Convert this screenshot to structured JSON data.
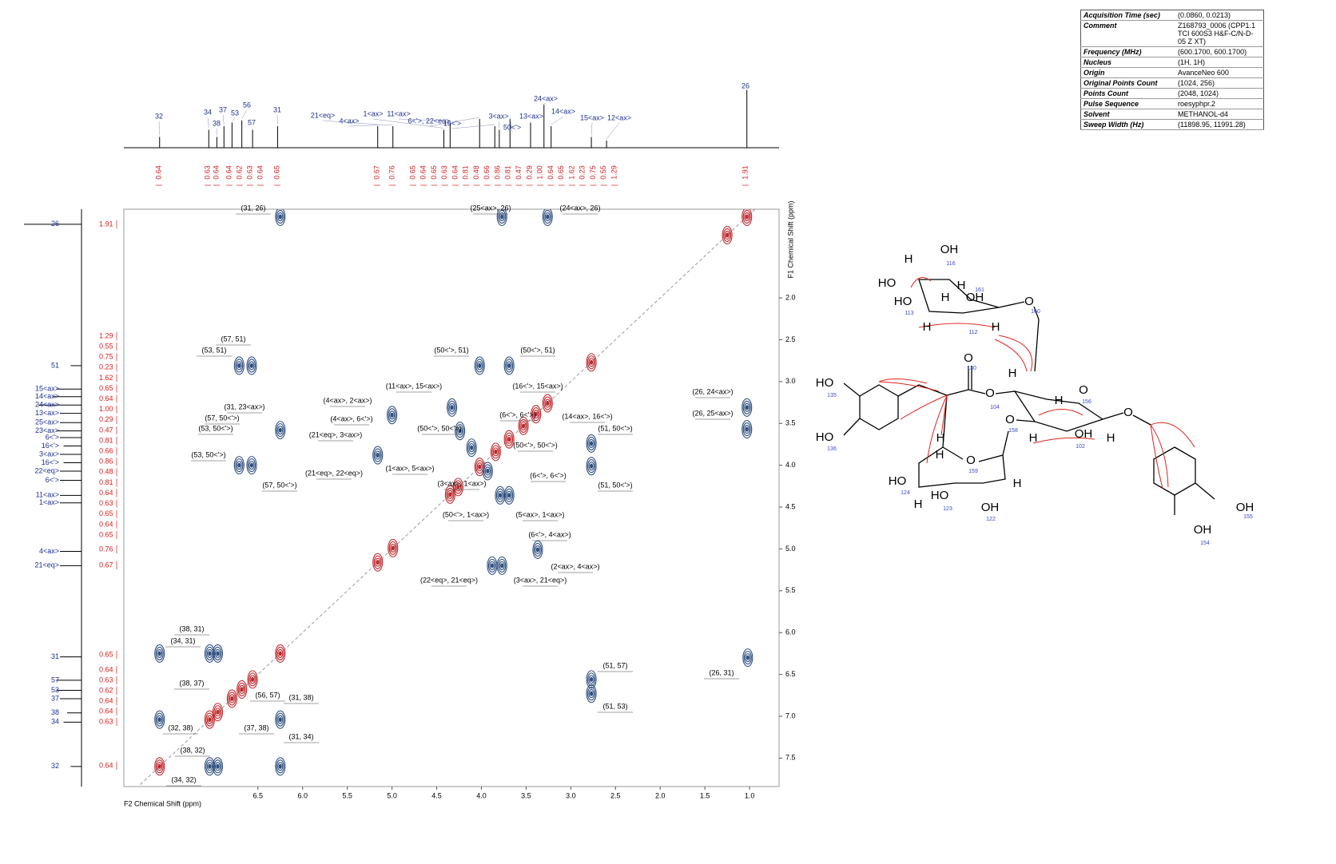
{
  "table": {
    "rows": [
      [
        "Acquisition Time (sec)",
        "(0.0860, 0.0213)"
      ],
      [
        "Comment",
        "Z168793_0006 (CPP1.1 TCI 600S3 H&F-C/N-D-05 Z XT)"
      ],
      [
        "Frequency (MHz)",
        "(600.1700, 600.1700)"
      ],
      [
        "Nucleus",
        "(1H, 1H)"
      ],
      [
        "Origin",
        "AvanceNeo 600"
      ],
      [
        "Original Points Count",
        "(1024, 256)"
      ],
      [
        "Points Count",
        "(2048, 1024)"
      ],
      [
        "Pulse Sequence",
        "roesyphpr.2"
      ],
      [
        "Solvent",
        "METHANOL-d4"
      ],
      [
        "Sweep Width (Hz)",
        "(11898.95, 11991.28)"
      ]
    ]
  },
  "chart_data": {
    "type": "contour",
    "x_label": "F2 Chemical Shift (ppm)",
    "y_label": "F1 Chemical Shift (ppm)",
    "xlim": [
      8.0,
      0.67
    ],
    "xticks": [
      6.5,
      {
        "value": 6,
        "label": "6.0"
      },
      5.5,
      {
        "value": 5,
        "label": "5.0"
      },
      4.5,
      {
        "value": 4,
        "label": "4.0"
      },
      3.5,
      {
        "value": 3,
        "label": "3.0"
      },
      2.5,
      {
        "value": 2,
        "label": "2.0"
      },
      1.5,
      {
        "value": 1,
        "label": "1.0"
      }
    ],
    "ylim": [
      0.94,
      7.84
    ],
    "yticks": [
      {
        "value": 2,
        "label": "2.0"
      },
      2.5,
      {
        "value": 3,
        "label": "3.0"
      },
      3.5,
      {
        "value": 4,
        "label": "4.0"
      },
      4.5,
      {
        "value": 5,
        "label": "5.0"
      },
      5.5,
      {
        "value": 6,
        "label": "6.0"
      },
      6.5,
      {
        "value": 7,
        "label": "7.0"
      },
      7.5
    ],
    "series": [
      {
        "color": "#c0282d",
        "x": [
          7.6,
          7.04,
          6.95,
          6.79,
          6.68,
          6.56,
          6.25,
          5.16,
          4.99,
          4.35,
          4.26,
          4.02,
          3.84,
          3.69,
          3.53,
          3.39,
          3.26,
          2.77,
          1.25,
          1.03
        ],
        "y": [
          7.6,
          7.04,
          6.95,
          6.79,
          6.68,
          6.56,
          6.25,
          5.16,
          4.99,
          4.35,
          4.26,
          4.02,
          3.84,
          3.69,
          3.53,
          3.39,
          3.26,
          2.77,
          1.25,
          1.03
        ]
      },
      {
        "color": "#2f4f80",
        "x": [
          7.6,
          7.6,
          7.04,
          6.95,
          6.25,
          6.25,
          7.04,
          6.95,
          6.71,
          6.57,
          6.71,
          6.57,
          6.25,
          6.25,
          3.77,
          3.26,
          1.03,
          1.03,
          2.77,
          2.77,
          3.88,
          3.77,
          3.37,
          4.02,
          3.69,
          4.33,
          5.16,
          5.0,
          3.79,
          3.69,
          2.77,
          2.77,
          1.02,
          4.24,
          4.11,
          3.93
        ],
        "y": [
          6.25,
          7.04,
          6.25,
          6.25,
          7.04,
          7.6,
          7.6,
          7.6,
          2.81,
          2.81,
          4.0,
          4.0,
          1.03,
          3.58,
          1.03,
          1.03,
          3.31,
          3.57,
          6.56,
          6.73,
          5.2,
          5.2,
          5.01,
          2.81,
          2.81,
          3.31,
          3.88,
          3.4,
          4.36,
          4.36,
          3.74,
          4.01,
          6.3,
          3.59,
          3.79,
          4.07
        ]
      }
    ],
    "annotations": [
      "(31, 26)",
      "(25<ax>, 26)",
      "(24<ax>, 26)",
      "(57, 51)",
      "(53, 51)",
      "(50<'>, 51)",
      "(50<'>, 51)",
      "(11<ax>, 15<ax>)",
      "(16<'>, 15<ax>)",
      "(26, 24<ax>)",
      "(4<ax>, 2<ax>)",
      "(31, 23<ax>)",
      "(26, 25<ax>)",
      "(4<ax>, 6<'>)",
      "(14<ax>, 16<'>)",
      "(57, 50<'>)",
      "(53, 50<'>)",
      "(50<'>, 50<'>)",
      "(6<'>, 6<'>)",
      "(51, 50<'>)",
      "(21<eq>, 3<ax>)",
      "(50<'>, 50<'>)",
      "(53, 50<'>)",
      "(1<ax>, 5<ax>)",
      "(21<eq>, 22<eq>)",
      "(57, 50<'>)",
      "(6<'>, 6<'>)",
      "(51, 50<'>)",
      "(3<ax>, 1<ax>)",
      "(50<'>, 1<ax>)",
      "(5<ax>, 1<ax>)",
      "(6<'>, 4<ax>)",
      "(2<ax>, 4<ax>)",
      "(22<eq>, 21<eq>)",
      "(3<ax>, 21<eq>)",
      "(38, 31)",
      "(34, 31)",
      "(38, 37)",
      "(56, 57)",
      "(31, 38)",
      "(51, 57)",
      "(26, 31)",
      "(51, 53)",
      "(32, 38)",
      "(37, 38)",
      "(31, 34)",
      "(38, 32)",
      "(34, 32)"
    ],
    "top_spectrum": {
      "labels": [
        "32",
        "34",
        "38",
        "37",
        "53",
        "56",
        "57",
        "31",
        "21<eq>",
        "4<ax>",
        "1<ax>",
        "11<ax>",
        "6<'>, 22<eq>",
        "16<'>",
        "3<ax>",
        "50<'>",
        "13<ax>",
        "24<ax>",
        "14<ax>",
        "15<ax>",
        "12<ax>",
        "26"
      ],
      "x": [
        7.6,
        7.05,
        6.96,
        6.88,
        6.79,
        6.68,
        6.56,
        6.28,
        5.16,
        4.99,
        4.42,
        4.35,
        4.02,
        3.85,
        3.8,
        3.68,
        3.45,
        3.3,
        3.22,
        2.77,
        2.6,
        1.03
      ],
      "intensity": [
        0.15,
        0.25,
        0.15,
        0.3,
        0.35,
        0.38,
        0.25,
        0.3,
        0.3,
        0.3,
        0.25,
        0.35,
        0.4,
        0.3,
        0.25,
        0.4,
        0.35,
        0.6,
        0.3,
        0.15,
        0.1,
        0.8
      ],
      "integrals": [
        0.64,
        0.63,
        0.64,
        0.64,
        0.62,
        0.63,
        0.64,
        0.65,
        0.67,
        0.76,
        0.65,
        0.64,
        0.65,
        0.63,
        0.64,
        0.81,
        0.48,
        0.66,
        0.86,
        0.81,
        0.47,
        0.29,
        {
          "value": 1,
          "label": "1.00"
        },
        0.64,
        0.65,
        1.62,
        0.23,
        0.75,
        0.55,
        1.29,
        1.91
      ]
    },
    "left_spectrum": {
      "labels": [
        "26",
        "51",
        "15<ax>",
        "14<ax>",
        "24<ax>",
        "13<ax>",
        "25<ax>",
        "23<ax>",
        "6<'>",
        "16<'>",
        "3<ax>",
        "16<'>",
        "22<eq>",
        "6<'>",
        "11<ax>",
        "1<ax>",
        "4<ax>",
        "21<eq>",
        "31",
        "57",
        "53",
        "37",
        "38",
        "34",
        "32"
      ],
      "y": [
        1.12,
        2.81,
        3.09,
        3.18,
        3.28,
        3.38,
        3.49,
        3.59,
        3.67,
        3.77,
        3.87,
        3.97,
        4.07,
        4.18,
        4.36,
        4.45,
        5.03,
        5.2,
        6.29,
        6.57,
        6.69,
        6.79,
        6.96,
        7.07,
        7.6
      ],
      "intensity": [
        0.8,
        0.15,
        0.35,
        0.4,
        0.6,
        0.3,
        0.3,
        0.35,
        0.3,
        0.25,
        0.3,
        0.25,
        0.3,
        0.3,
        0.3,
        0.3,
        0.3,
        0.3,
        0.3,
        0.35,
        0.35,
        0.3,
        0.2,
        0.25,
        0.15
      ],
      "integrals": [
        1.91,
        1.29,
        0.55,
        0.75,
        0.23,
        1.62,
        0.65,
        0.64,
        {
          "value": 1,
          "label": "1.00"
        },
        0.29,
        0.47,
        0.81,
        0.66,
        0.86,
        0.48,
        0.81,
        0.64,
        0.63,
        0.65,
        0.64,
        0.65,
        0.76,
        0.67,
        0.65,
        0.64,
        0.63,
        0.62,
        0.64,
        0.64,
        0.63,
        0.64
      ]
    }
  },
  "molecule": {
    "labels": [
      "OH",
      "HO",
      "HO",
      "H",
      "H",
      "H",
      "OH",
      "O",
      "H",
      "H",
      "O",
      "HO",
      "HO",
      "O",
      "H",
      "H",
      "O",
      "O",
      "O",
      "H",
      "H",
      "O",
      "H",
      "OH",
      "H",
      "H",
      "HO",
      "HO",
      "OH",
      "H",
      "OH",
      "OH",
      "116",
      "161",
      "113",
      "112",
      "160",
      "135",
      "136",
      "130",
      "104",
      "158",
      "156",
      "102",
      "159",
      "124",
      "123",
      "122",
      "154",
      "155"
    ]
  }
}
